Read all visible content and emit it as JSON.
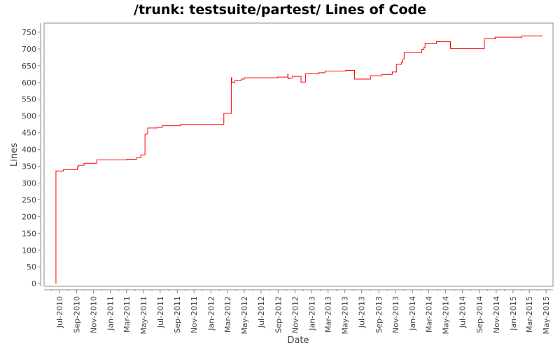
{
  "chart_data": {
    "type": "line",
    "step": true,
    "title": "/trunk: testsuite/partest/ Lines of Code",
    "xlabel": "Date",
    "ylabel": "Lines",
    "xlim": [
      "2010-05-06",
      "2015-05-26"
    ],
    "ylim": [
      -8,
      777
    ],
    "grid": false,
    "line_color": "#ff0000",
    "yticks": [
      0,
      50,
      100,
      150,
      200,
      250,
      300,
      350,
      400,
      450,
      500,
      550,
      600,
      650,
      700,
      750
    ],
    "xticks": [
      {
        "date": "2010-07-01",
        "label": "Jul-2010"
      },
      {
        "date": "2010-09-01",
        "label": "Sep-2010"
      },
      {
        "date": "2010-11-01",
        "label": "Nov-2010"
      },
      {
        "date": "2011-01-01",
        "label": "Jan-2011"
      },
      {
        "date": "2011-03-01",
        "label": "Mar-2011"
      },
      {
        "date": "2011-05-01",
        "label": "May-2011"
      },
      {
        "date": "2011-07-01",
        "label": "Jul-2011"
      },
      {
        "date": "2011-09-01",
        "label": "Sep-2011"
      },
      {
        "date": "2011-11-01",
        "label": "Nov-2011"
      },
      {
        "date": "2012-01-01",
        "label": "Jan-2012"
      },
      {
        "date": "2012-03-01",
        "label": "Mar-2012"
      },
      {
        "date": "2012-05-01",
        "label": "May-2012"
      },
      {
        "date": "2012-07-01",
        "label": "Jul-2012"
      },
      {
        "date": "2012-09-01",
        "label": "Sep-2012"
      },
      {
        "date": "2012-11-01",
        "label": "Nov-2012"
      },
      {
        "date": "2013-01-01",
        "label": "Jan-2013"
      },
      {
        "date": "2013-03-01",
        "label": "Mar-2013"
      },
      {
        "date": "2013-05-01",
        "label": "May-2013"
      },
      {
        "date": "2013-07-01",
        "label": "Jul-2013"
      },
      {
        "date": "2013-09-01",
        "label": "Sep-2013"
      },
      {
        "date": "2013-11-01",
        "label": "Nov-2013"
      },
      {
        "date": "2014-01-01",
        "label": "Jan-2014"
      },
      {
        "date": "2014-03-01",
        "label": "Mar-2014"
      },
      {
        "date": "2014-05-01",
        "label": "May-2014"
      },
      {
        "date": "2014-07-01",
        "label": "Jul-2014"
      },
      {
        "date": "2014-09-01",
        "label": "Sep-2014"
      },
      {
        "date": "2014-11-01",
        "label": "Nov-2014"
      },
      {
        "date": "2015-01-01",
        "label": "Jan-2015"
      },
      {
        "date": "2015-03-01",
        "label": "Mar-2015"
      },
      {
        "date": "2015-05-01",
        "label": "May-2015"
      }
    ],
    "series": [
      {
        "points": [
          [
            "2010-06-18",
            0
          ],
          [
            "2010-06-18",
            336
          ],
          [
            "2010-07-15",
            340
          ],
          [
            "2010-09-04",
            349
          ],
          [
            "2010-09-08",
            353
          ],
          [
            "2010-09-28",
            359
          ],
          [
            "2010-11-13",
            369
          ],
          [
            "2011-03-02",
            371
          ],
          [
            "2011-04-06",
            375
          ],
          [
            "2011-04-22",
            384
          ],
          [
            "2011-05-07",
            445
          ],
          [
            "2011-05-11",
            447
          ],
          [
            "2011-05-17",
            464
          ],
          [
            "2011-06-22",
            466
          ],
          [
            "2011-07-09",
            471
          ],
          [
            "2011-09-13",
            475
          ],
          [
            "2012-02-17",
            508
          ],
          [
            "2012-03-15",
            614
          ],
          [
            "2012-03-17",
            600
          ],
          [
            "2012-03-28",
            606
          ],
          [
            "2012-04-21",
            610
          ],
          [
            "2012-05-01",
            614
          ],
          [
            "2012-08-30",
            616
          ],
          [
            "2012-10-06",
            625
          ],
          [
            "2012-10-07",
            611
          ],
          [
            "2012-10-13",
            613
          ],
          [
            "2012-10-23",
            618
          ],
          [
            "2012-11-23",
            601
          ],
          [
            "2012-12-09",
            626
          ],
          [
            "2013-01-26",
            629
          ],
          [
            "2013-02-18",
            634
          ],
          [
            "2013-05-03",
            636
          ],
          [
            "2013-06-05",
            610
          ],
          [
            "2013-08-02",
            620
          ],
          [
            "2013-09-12",
            624
          ],
          [
            "2013-10-20",
            631
          ],
          [
            "2013-11-04",
            654
          ],
          [
            "2013-11-22",
            660
          ],
          [
            "2013-11-27",
            670
          ],
          [
            "2013-12-02",
            689
          ],
          [
            "2014-02-04",
            699
          ],
          [
            "2014-02-12",
            705
          ],
          [
            "2014-02-16",
            716
          ],
          [
            "2014-03-29",
            722
          ],
          [
            "2014-05-19",
            701
          ],
          [
            "2014-09-19",
            730
          ],
          [
            "2014-10-28",
            735
          ],
          [
            "2015-02-02",
            739
          ],
          [
            "2015-04-18",
            739
          ]
        ]
      }
    ]
  }
}
